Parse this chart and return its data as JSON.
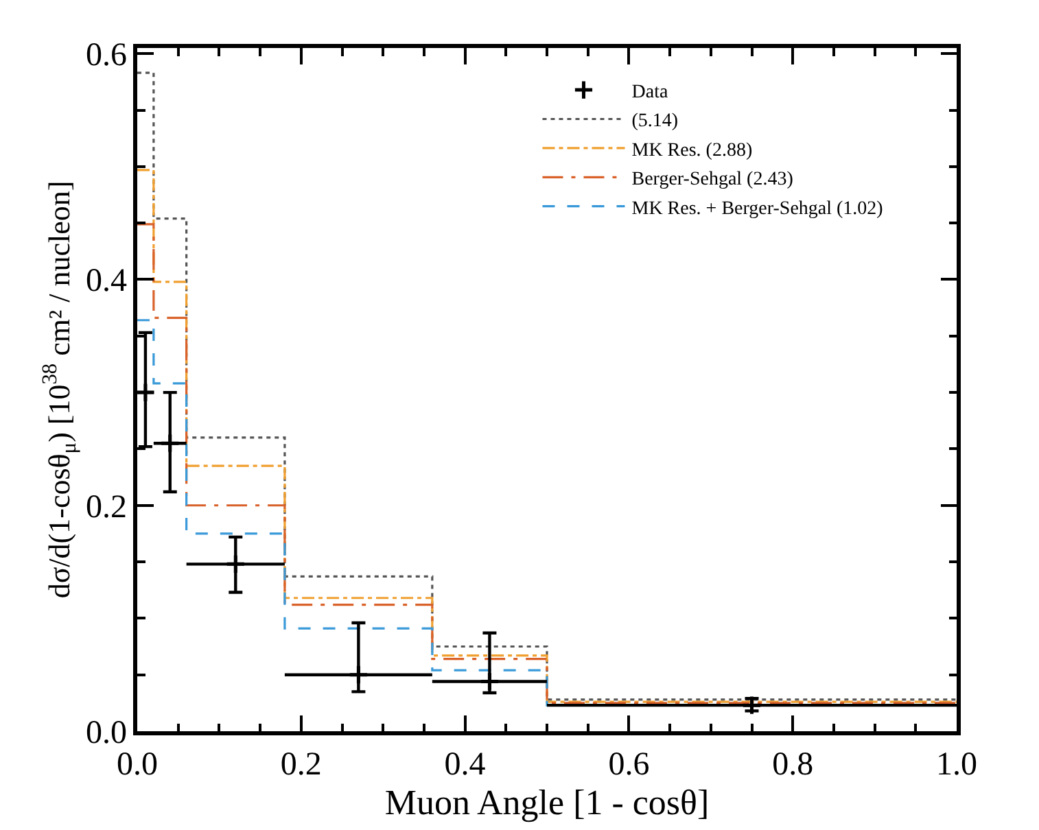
{
  "chart_data": {
    "type": "histogram",
    "xlabel": "Muon Angle [1 - cosθ]",
    "ylabel": "dσ/d(1-cosθ$_{μ}$) [10$^{38}$ cm² / nucleon]",
    "bins": [
      0,
      0.02,
      0.06,
      0.18,
      0.36,
      0.5,
      1.0
    ],
    "xlim": [
      0,
      1.0
    ],
    "xticks": [
      {
        "value": 0,
        "label": "0.0"
      },
      0.2,
      0.4,
      0.6,
      0.8,
      {
        "value": 1.0,
        "label": "1.0"
      }
    ],
    "ylim": [
      0,
      0.605
    ],
    "yticks": [
      {
        "value": 0,
        "label": "0.0"
      },
      0.2,
      0.4,
      0.6
    ],
    "legend": "top right",
    "series": [
      {
        "name": "Data",
        "type": "scatter",
        "marker": "cross",
        "color": "#000000",
        "x": [
          0.01,
          0.04,
          0.12,
          0.27,
          0.43,
          0.75
        ],
        "values": [
          0.3,
          0.255,
          0.148,
          0.05,
          0.044,
          0.023
        ],
        "errors": [
          [
            0.252,
            0.353
          ],
          [
            0.212,
            0.3
          ],
          [
            0.123,
            0.172
          ],
          [
            0.035,
            0.096
          ],
          [
            0.034,
            0.087
          ],
          [
            0.018,
            0.029
          ]
        ],
        "xerrors": [
          0.01,
          0.02,
          0.06,
          0.09,
          0.07,
          0.25
        ]
      },
      {
        "name": "(5.14)",
        "color": "#555555",
        "line_style": "dotted",
        "values": [
          0.583,
          0.454,
          0.26,
          0.137,
          0.075,
          0.028
        ]
      },
      {
        "name": "MK Res. (2.88)",
        "color": "#f0a030",
        "line_style": "dashdot",
        "values": [
          0.497,
          0.398,
          0.235,
          0.118,
          0.067,
          0.026
        ]
      },
      {
        "name": "Berger-Sehgal (2.43)",
        "color": "#d9622b",
        "line_style": "longdashdot",
        "values": [
          0.449,
          0.366,
          0.2,
          0.112,
          0.064,
          0.025
        ]
      },
      {
        "name": "MK Res. + Berger-Sehgal (1.02)",
        "color": "#3a9ad9",
        "line_style": "dashed",
        "values": [
          0.364,
          0.308,
          0.175,
          0.091,
          0.054,
          0.023
        ]
      }
    ]
  }
}
